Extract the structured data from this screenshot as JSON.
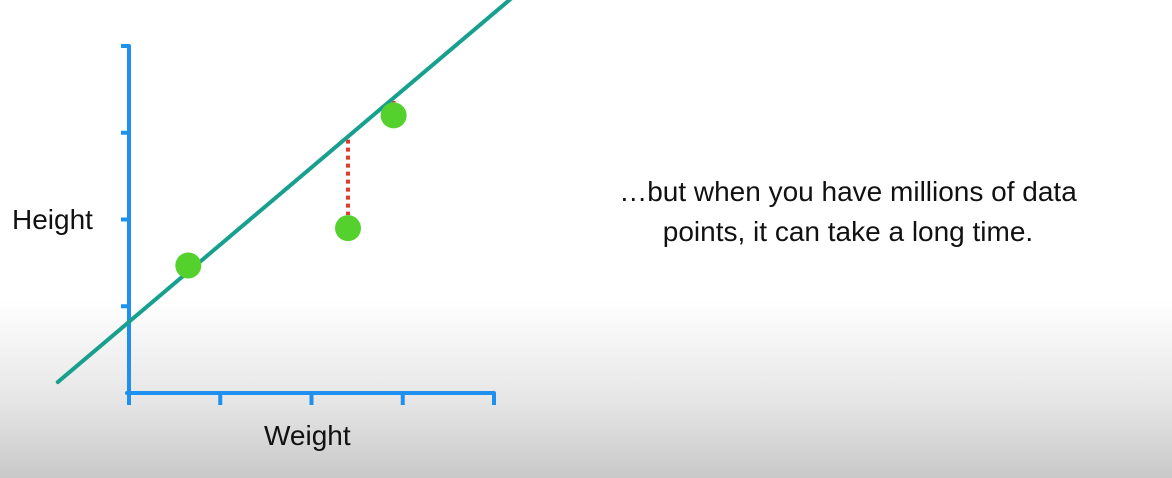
{
  "chart_data": {
    "type": "scatter",
    "xlabel": "Weight",
    "ylabel": "Height",
    "xlim": [
      0,
      4
    ],
    "ylim": [
      0,
      4
    ],
    "x_ticks": [
      1,
      2,
      3,
      4
    ],
    "y_ticks": [
      1,
      2,
      3,
      4
    ],
    "points": [
      {
        "x": 0.65,
        "y": 1.47
      },
      {
        "x": 2.4,
        "y": 1.9
      },
      {
        "x": 2.9,
        "y": 3.2
      }
    ],
    "fit_line": {
      "intercept": 0.82,
      "slope": 0.89,
      "x_range": [
        -0.78,
        4.3
      ]
    },
    "show_residuals": true,
    "colors": {
      "axis": "#1E90F0",
      "line": "#17A08E",
      "points": "#55D12E",
      "residuals": "#E03A2E"
    }
  },
  "caption": "…but when you have millions of data points, it can take a long time."
}
